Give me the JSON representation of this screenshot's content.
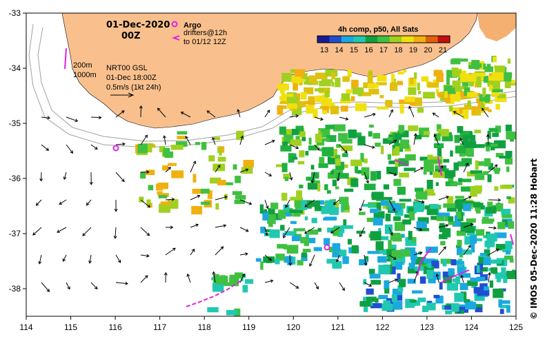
{
  "map": {
    "date_label": "01-Dec-2020",
    "time_label": "00Z",
    "argo_label": "Argo",
    "drifters_label": "drifters@12h",
    "drifters_to_label": "to 01/12 12Z",
    "isobath_200": "200m",
    "isobath_1000": "1000m",
    "product_label": "NRT00 GSL",
    "product_time": "01-Dec 18:00Z",
    "vector_scale": "0.5m/s (1kt 24h)",
    "colorbar_title": "4h comp, p50, All Sats",
    "colorbar_ticks": [
      "13",
      "14",
      "15",
      "16",
      "17",
      "18",
      "19",
      "20",
      "21"
    ],
    "credit": "© IMOS 05-Dec-2020 11:28 Hobart",
    "lon_ticks": [
      "114",
      "115",
      "116",
      "117",
      "118",
      "119",
      "120",
      "121",
      "122",
      "123",
      "124",
      "125"
    ],
    "lat_ticks": [
      "-33",
      "-34",
      "-35",
      "-36",
      "-37",
      "-38"
    ],
    "colors": {
      "land": "#f9c08d",
      "argo": "#e020e0",
      "drifter": "#e020e0",
      "isobath": "#a0a0a0",
      "colormap": [
        "#1a1a90",
        "#1f4fd0",
        "#1aa8e0",
        "#20c8b0",
        "#10a040",
        "#40c040",
        "#a0d020",
        "#f0e010",
        "#f0b010",
        "#e06010",
        "#c01010"
      ]
    }
  }
}
